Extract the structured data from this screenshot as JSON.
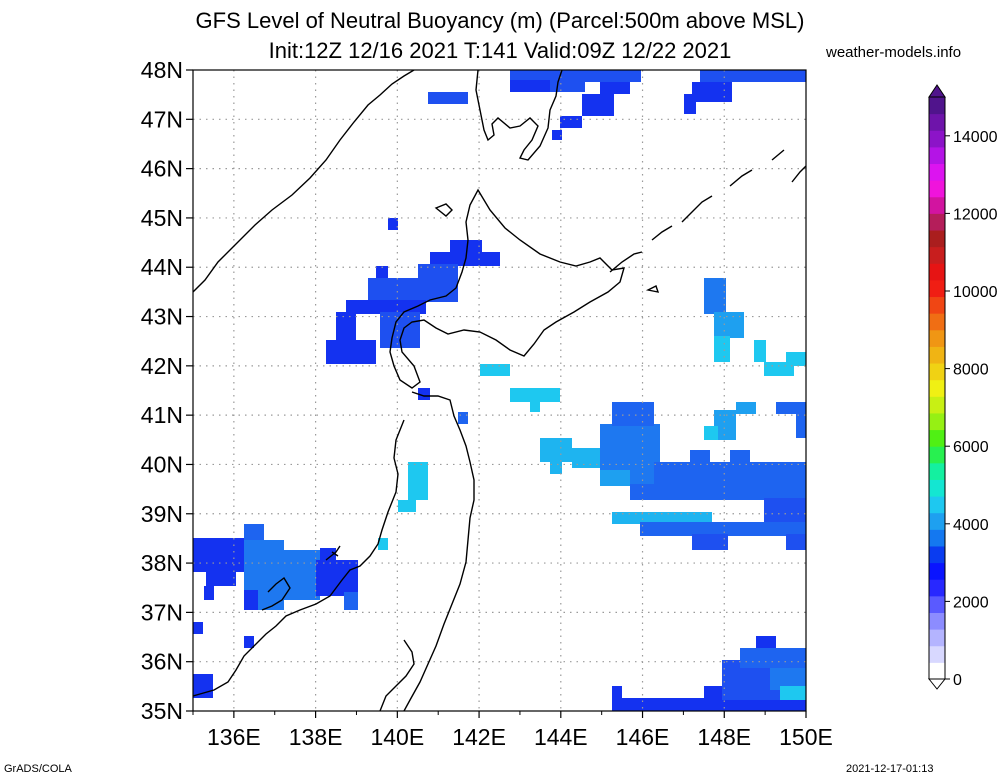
{
  "title": {
    "line1": "GFS Level of Neutral Buoyancy (m) (Parcel:500m above MSL)",
    "line2": "Init:12Z 12/16 2021 T:141 Valid:09Z 12/22 2021"
  },
  "site": "weather-models.info",
  "footer": {
    "left": "GrADS/COLA",
    "right": "2021-12-17-01:13"
  },
  "map": {
    "lat_labels": [
      "48N",
      "47N",
      "46N",
      "45N",
      "44N",
      "43N",
      "42N",
      "41N",
      "40N",
      "39N",
      "38N",
      "37N",
      "36N",
      "35N"
    ],
    "lon_labels": [
      "136E",
      "138E",
      "140E",
      "142E",
      "144E",
      "146E",
      "148E",
      "150E"
    ],
    "lat_range": [
      35,
      48
    ],
    "lon_range": [
      135,
      150
    ],
    "grid": "dotted",
    "coastline_color": "#000000"
  },
  "colorbar": {
    "labels": [
      "0",
      "2000",
      "4000",
      "6000",
      "8000",
      "10000",
      "12000",
      "14000"
    ],
    "range": [
      0,
      15000
    ],
    "colors": [
      "#ffffff",
      "#d8d8ff",
      "#b4b4ff",
      "#8c8cff",
      "#5a5aff",
      "#2828ff",
      "#0a14ff",
      "#0a3cf0",
      "#1478f0",
      "#1ea0f0",
      "#1ec8f0",
      "#14e6d2",
      "#14f0a0",
      "#28f050",
      "#50f014",
      "#96f014",
      "#c8f014",
      "#f0f014",
      "#f0d214",
      "#f0b414",
      "#f09614",
      "#f06e14",
      "#f04614",
      "#f01e14",
      "#e61414",
      "#c81e1e",
      "#aa1e1e",
      "#b41e5a",
      "#d214a0",
      "#f014dc",
      "#dc14f0",
      "#b414e6",
      "#8c14c8",
      "#6e14aa",
      "#50148c"
    ]
  },
  "field_colors": {
    "dark_blue": "#1428f0",
    "mid_blue": "#1e64f0",
    "light_blue": "#1eb4f0"
  }
}
